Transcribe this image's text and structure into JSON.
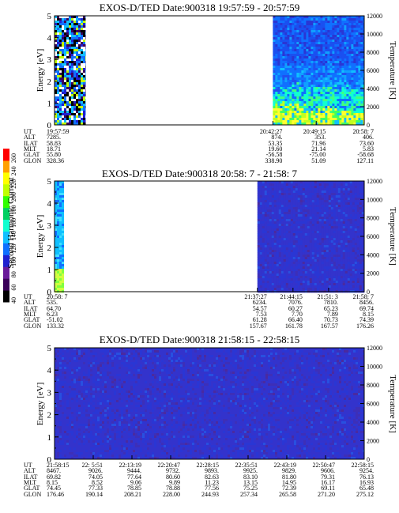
{
  "axis_labels": {
    "energy": "Energy [eV]",
    "temperature": "Temperature [K]",
    "colorbar": "Second Harmonic Current"
  },
  "colorbar": {
    "ticks": [
      "40",
      "60",
      "80",
      "100",
      "120",
      "140",
      "160",
      "180",
      "200",
      "220",
      "240",
      "260"
    ],
    "colors": [
      "#000000",
      "#3a005a",
      "#6a1a9a",
      "#2020d0",
      "#1070ff",
      "#10c0ff",
      "#10ffd0",
      "#00d060",
      "#30ff00",
      "#c0ff00",
      "#ffff00",
      "#ffa000",
      "#ff0000"
    ]
  },
  "info_labels": [
    "UT",
    "ALT",
    "ILAT",
    "MLT",
    "GLAT",
    "GLON"
  ],
  "panels": [
    {
      "title": "EXOS-D/TED   Date:900318   19:57:59 - 20:57:59",
      "columns": [
        {
          "pos": 0.0,
          "values": [
            "19:57:59",
            "7285.",
            "58.83",
            "18.71",
            "55.80",
            "328.36"
          ]
        },
        {
          "pos": 0.705,
          "values": [
            "20:42:27",
            "874.",
            "53.35",
            "19.60",
            "-56.58",
            "338.90"
          ]
        },
        {
          "pos": 0.845,
          "values": [
            "20:49:15",
            "353.",
            "71.96",
            "21.14",
            "-75.00",
            "51.09"
          ]
        },
        {
          "pos": 1.0,
          "values": [
            "20:58: 7",
            "406.",
            "73.60",
            "5.83",
            "-58.68",
            "127.11"
          ]
        }
      ]
    },
    {
      "title": "EXOS-D/TED   Date:900318   20:58: 7 - 21:58: 7",
      "columns": [
        {
          "pos": 0.0,
          "values": [
            "20:58: 7",
            "535.",
            "64.70",
            "6.23",
            "-51.02",
            "133.32"
          ]
        },
        {
          "pos": 0.655,
          "values": [
            "21:37:27",
            "6234.",
            "54.57",
            "7.53",
            "61.28",
            "157.67"
          ]
        },
        {
          "pos": 0.77,
          "values": [
            "21:44:15",
            "7076.",
            "60.27",
            "7.70",
            "66.40",
            "161.78"
          ]
        },
        {
          "pos": 0.885,
          "values": [
            "21:51: 3",
            "7810.",
            "65.23",
            "7.89",
            "70.73",
            "167.57"
          ]
        },
        {
          "pos": 1.0,
          "values": [
            "21:58: 7",
            "8456.",
            "69.74",
            "8.15",
            "74.39",
            "176.26"
          ]
        }
      ]
    },
    {
      "title": "EXOS-D/TED   Date:900318   21:58:15 - 22:58:15",
      "columns": [
        {
          "pos": 0.0,
          "values": [
            "21:58:15",
            "8467.",
            "69.82",
            "8.15",
            "74.45",
            "176.46"
          ]
        },
        {
          "pos": 0.125,
          "values": [
            "22: 5:51",
            "9026.",
            "74.05",
            "8.52",
            "77.33",
            "190.14"
          ]
        },
        {
          "pos": 0.25,
          "values": [
            "22:13:19",
            "9444.",
            "77.64",
            "9.06",
            "78.85",
            "208.21"
          ]
        },
        {
          "pos": 0.375,
          "values": [
            "22:20:47",
            "9732.",
            "80.60",
            "9.89",
            "78.88",
            "228.00"
          ]
        },
        {
          "pos": 0.5,
          "values": [
            "22:28:15",
            "9893.",
            "82.63",
            "11.23",
            "77.56",
            "244.93"
          ]
        },
        {
          "pos": 0.625,
          "values": [
            "22:35:51",
            "9925.",
            "83.10",
            "13.15",
            "75.25",
            "257.34"
          ]
        },
        {
          "pos": 0.75,
          "values": [
            "22:43:19",
            "9829.",
            "81.80",
            "14.95",
            "72.39",
            "265.58"
          ]
        },
        {
          "pos": 0.875,
          "values": [
            "22:50:47",
            "9606.",
            "79.31",
            "16.17",
            "69.11",
            "271.20"
          ]
        },
        {
          "pos": 1.0,
          "values": [
            "22:58:15",
            "9254.",
            "76.13",
            "16.93",
            "65.48",
            "275.12"
          ]
        }
      ]
    }
  ],
  "chart_data": {
    "type": "heatmap",
    "y_energy": {
      "label": "Energy [eV]",
      "range": [
        0,
        5
      ],
      "ticks": [
        0,
        1,
        2,
        3,
        4,
        5
      ]
    },
    "y_temperature": {
      "label": "Temperature [K]",
      "range": [
        0,
        12000
      ],
      "ticks": [
        0,
        2000,
        4000,
        6000,
        8000,
        10000,
        12000
      ]
    },
    "color_scale": {
      "label": "Second Harmonic Current",
      "range": [
        40,
        260
      ]
    },
    "panels": [
      {
        "data_ranges": [
          [
            0.0,
            0.1
          ],
          [
            0.705,
            1.0
          ]
        ]
      },
      {
        "data_ranges": [
          [
            0.0,
            0.03
          ],
          [
            0.655,
            1.0
          ]
        ]
      },
      {
        "data_ranges": [
          [
            0.0,
            1.0
          ]
        ]
      }
    ]
  }
}
